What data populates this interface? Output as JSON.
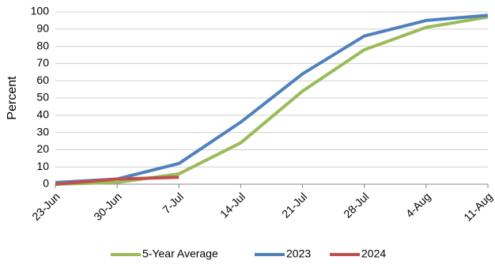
{
  "chart_data": {
    "type": "line",
    "y_label": "Percent",
    "categories": [
      "23-Jun",
      "30-Jun",
      "7-Jul",
      "14-Jul",
      "21-Jul",
      "28-Jul",
      "4-Aug",
      "11-Aug"
    ],
    "series": [
      {
        "name": "5-Year Average",
        "color": "#9bbb59",
        "values": [
          0,
          1,
          6,
          24,
          54,
          78,
          91,
          97
        ]
      },
      {
        "name": "2023",
        "color": "#4f81bd",
        "values": [
          1,
          3,
          12,
          36,
          64,
          86,
          95,
          98
        ]
      },
      {
        "name": "2024",
        "color": "#c0504d",
        "values": [
          0,
          3,
          4,
          null,
          null,
          null,
          null,
          null
        ]
      }
    ],
    "ylim": [
      0,
      100
    ],
    "yticks": [
      0,
      10,
      20,
      30,
      40,
      50,
      60,
      70,
      80,
      90,
      100
    ],
    "grid": true
  }
}
